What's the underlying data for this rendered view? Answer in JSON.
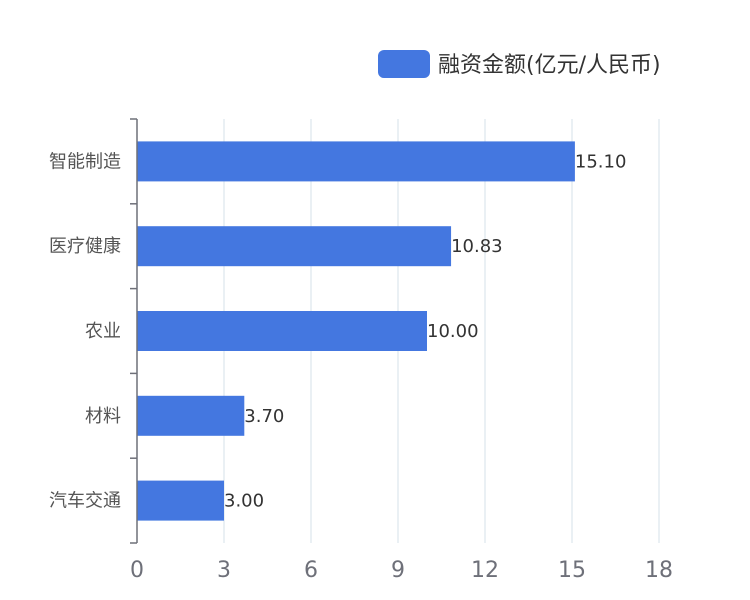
{
  "chart_data": {
    "type": "bar",
    "orientation": "horizontal",
    "categories": [
      "智能制造",
      "医疗健康",
      "农业",
      "材料",
      "汽车交通"
    ],
    "series": [
      {
        "name": "融资金额(亿元/人民币)",
        "values": [
          15.1,
          10.83,
          10.0,
          3.7,
          3.0
        ],
        "color": "#4477e0"
      }
    ],
    "data_labels": [
      "15.10",
      "10.83",
      "10.00",
      "3.70",
      "3.00"
    ],
    "xlim": [
      0,
      18
    ],
    "x_ticks": [
      0,
      3,
      6,
      9,
      12,
      15,
      18
    ],
    "grid": true,
    "legend_position": "top-right"
  }
}
